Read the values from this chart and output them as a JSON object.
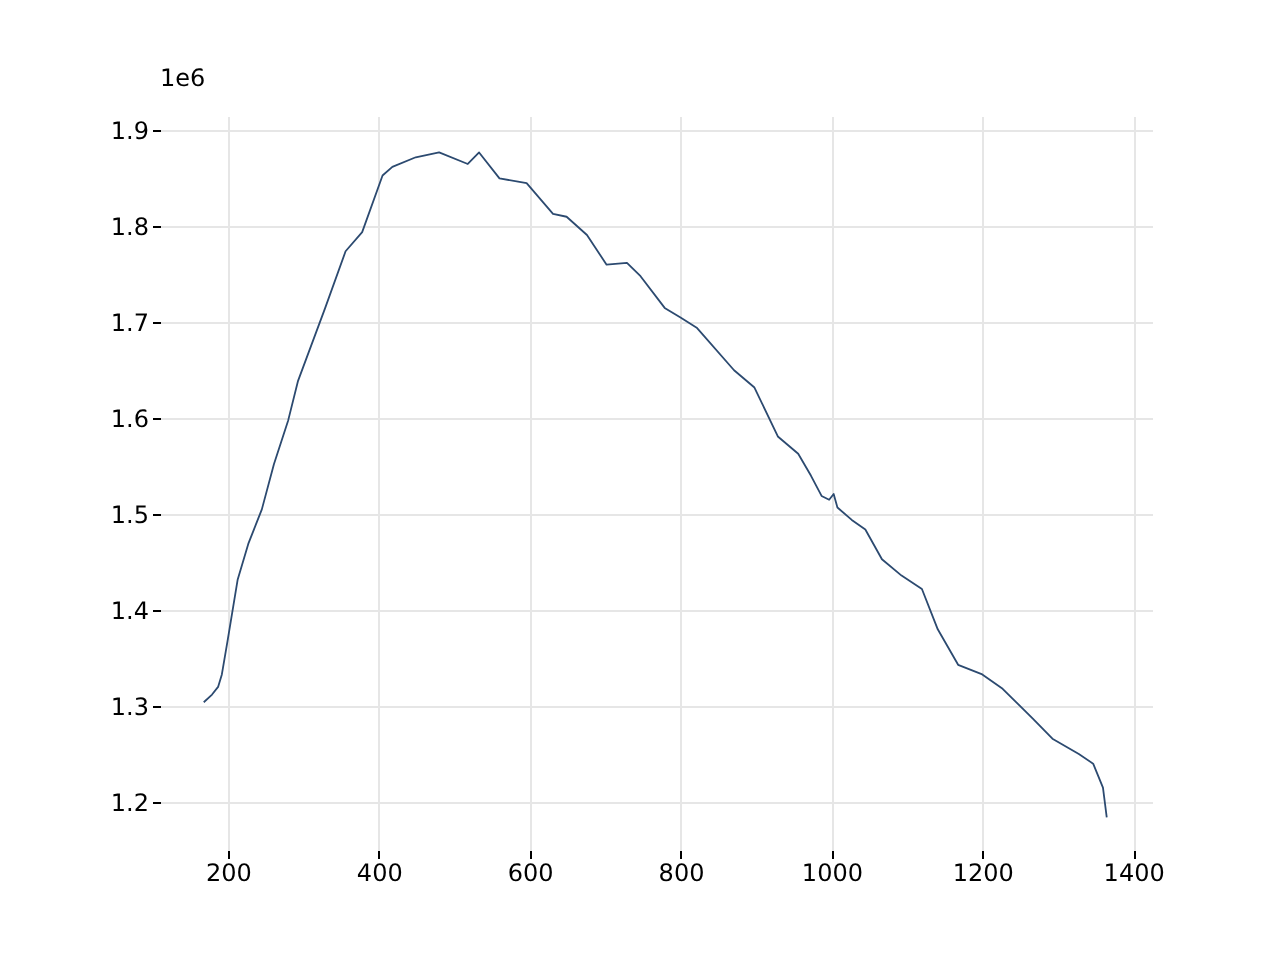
{
  "chart_data": {
    "type": "line",
    "annotations": [
      "1e6"
    ],
    "x": [
      168,
      179,
      187,
      192,
      200,
      213,
      227,
      245,
      261,
      280,
      293,
      329,
      356,
      378,
      405,
      418,
      449,
      480,
      518,
      533,
      560,
      596,
      631,
      649,
      676,
      702,
      729,
      747,
      779,
      800,
      822,
      871,
      898,
      929,
      956,
      973,
      987,
      997,
      1003,
      1008,
      1027,
      1045,
      1067,
      1093,
      1120,
      1141,
      1168,
      1200,
      1227,
      1267,
      1293,
      1328,
      1347,
      1360,
      1365
    ],
    "series": [
      {
        "color": "#2c4a70",
        "values": [
          1.304,
          1.312,
          1.32,
          1.333,
          1.37,
          1.432,
          1.469,
          1.505,
          1.552,
          1.598,
          1.639,
          1.715,
          1.774,
          1.794,
          1.853,
          1.862,
          1.872,
          1.877,
          1.865,
          1.877,
          1.85,
          1.845,
          1.813,
          1.81,
          1.791,
          1.76,
          1.762,
          1.748,
          1.715,
          1.705,
          1.694,
          1.65,
          1.632,
          1.581,
          1.563,
          1.54,
          1.519,
          1.515,
          1.521,
          1.507,
          1.494,
          1.484,
          1.453,
          1.436,
          1.422,
          1.38,
          1.343,
          1.333,
          1.318,
          1.287,
          1.266,
          1.25,
          1.24,
          1.215,
          1.184
        ]
      }
    ],
    "xlim": [
      110,
      1425
    ],
    "xticks": [
      200,
      400,
      600,
      800,
      1000,
      1200,
      1400
    ],
    "ylim": [
      1.15,
      1.915
    ],
    "yticks": [
      1.2,
      1.3,
      1.4,
      1.5,
      1.6,
      1.7,
      1.8,
      1.9
    ],
    "grid": true,
    "line_style": "solid"
  }
}
